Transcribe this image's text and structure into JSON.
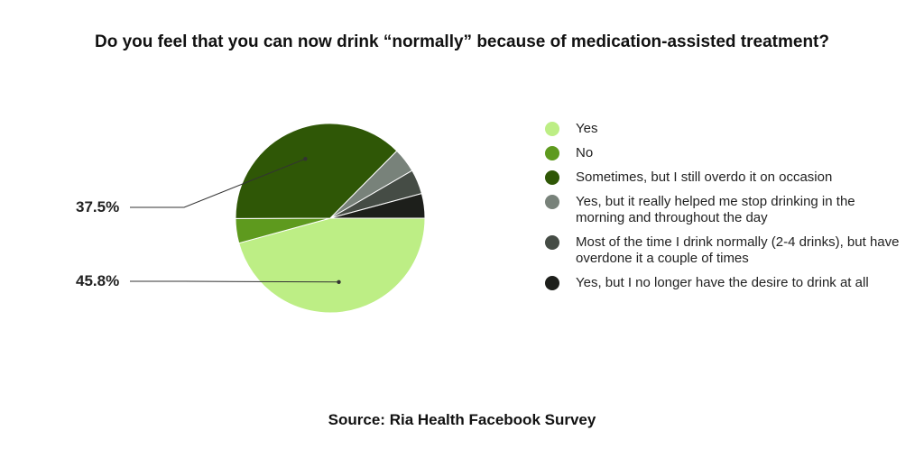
{
  "chart_data": {
    "type": "pie",
    "title": "Do you feel that you can now drink “normally” because of medication-assisted treatment?",
    "source": "Source: Ria Health Facebook Survey",
    "slices": [
      {
        "label": "Yes",
        "value": 45.8,
        "color": "#bdee85"
      },
      {
        "label": "No",
        "value": 4.2,
        "color": "#5e9a1e"
      },
      {
        "label": "Sometimes, but I still overdo it on occasion",
        "value": 37.5,
        "color": "#2f5706"
      },
      {
        "label": "Yes, but it really helped me stop drinking in the morning and throughout the day",
        "value": 4.2,
        "color": "#78827a"
      },
      {
        "label": "Most of the time I drink normally (2-4 drinks), but have overdone it a couple of times",
        "value": 4.2,
        "color": "#454c45"
      },
      {
        "label": "Yes, but I no longer have the desire to drink at all",
        "value": 4.2,
        "color": "#1d1f1b"
      }
    ],
    "callouts": [
      {
        "text": "37.5%",
        "slice": 2
      },
      {
        "text": "45.8%",
        "slice": 0
      }
    ],
    "legend": "right"
  }
}
